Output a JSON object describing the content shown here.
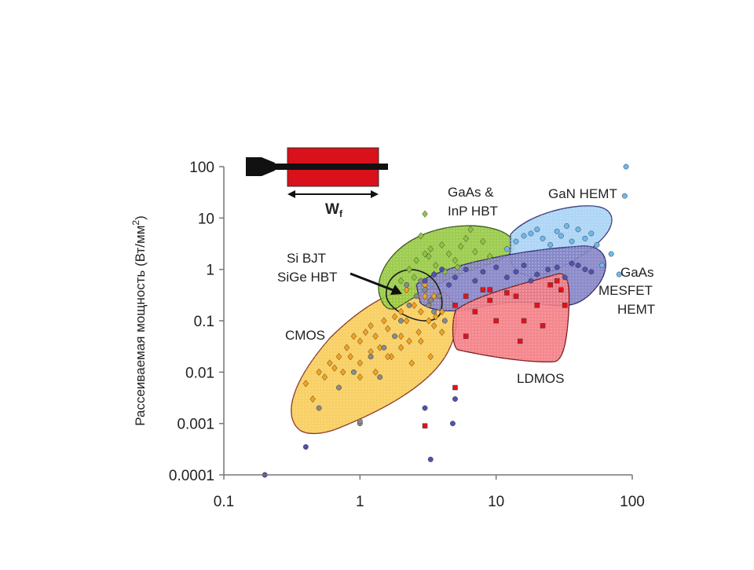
{
  "chart_data": {
    "type": "scatter",
    "title": "",
    "xlabel": "",
    "ylabel": "Рассеиваемая мощность (Вт/мм",
    "ylabel_sup": "2",
    "ylabel_close": ")",
    "xscale": "log",
    "yscale": "log",
    "xlim": [
      0.1,
      100
    ],
    "ylim": [
      0.0001,
      100
    ],
    "x_ticks": [
      "0.1",
      "1",
      "10",
      "100"
    ],
    "y_ticks": [
      "0.0001",
      "0.001",
      "0.01",
      "0.1",
      "1",
      "10",
      "100"
    ],
    "grid": false,
    "legend": "none",
    "inset_label": "W",
    "inset_label_sub": "f",
    "colors": {
      "cmos": "#f7a21b",
      "gaas_inp_hbt": "#8dc63f",
      "gan_hemt": "#7fc3f0",
      "gaas_mesfet_hemt": "#5b5fb4",
      "ldmos": "#ee3b42",
      "si_sige": "#8a8a8a",
      "inset": "#d8111b"
    },
    "regions": [
      {
        "name": "CMOS",
        "label": "CMOS",
        "color": "#f7c84a",
        "x_range": [
          0.33,
          5
        ],
        "y_range": [
          0.0006,
          1.5
        ]
      },
      {
        "name": "GaAs & InP HBT",
        "label_lines": [
          "GaAs &",
          "InP HBT"
        ],
        "color": "#93c83e",
        "x_range": [
          1.7,
          14
        ],
        "y_range": [
          0.35,
          6
        ]
      },
      {
        "name": "GaN HEMT",
        "label": "GaN HEMT",
        "color": "#a6d1f5",
        "x_range": [
          10,
          80
        ],
        "y_range": [
          0.7,
          20
        ]
      },
      {
        "name": "GaAs MESFET HEMT",
        "label_lines": [
          "GaAs",
          "MESFET",
          "HEMT"
        ],
        "color": "#8280c4",
        "x_range": [
          2.5,
          65
        ],
        "y_range": [
          0.1,
          3
        ]
      },
      {
        "name": "LDMOS",
        "label": "LDMOS",
        "color": "#f37b82",
        "x_range": [
          3.2,
          32
        ],
        "y_range": [
          0.02,
          1
        ]
      },
      {
        "name": "Si BJT SiGe HBT",
        "label_lines": [
          "Si BJT",
          "SiGe HBT"
        ],
        "color": "none",
        "x_range": [
          1.8,
          4
        ],
        "y_range": [
          0.12,
          1.1
        ]
      }
    ],
    "series": [
      {
        "name": "CMOS",
        "marker": "diamond",
        "color": "#f7a21b",
        "x": [
          0.4,
          0.5,
          0.6,
          0.7,
          0.8,
          0.9,
          1.0,
          1.1,
          1.2,
          1.3,
          1.5,
          1.6,
          1.8,
          2.0,
          2.2,
          2.5,
          2.8,
          3.0,
          3.3,
          3.6,
          4.0,
          0.45,
          0.55,
          0.65,
          0.75,
          0.85,
          1.0,
          1.2,
          1.4,
          1.7,
          2.0,
          2.3,
          2.7,
          3.2,
          3.5,
          4.0,
          1.0,
          1.3,
          1.6,
          2.0,
          2.4,
          2.8,
          3.3,
          3.0,
          3.5,
          2.2
        ],
        "y": [
          0.006,
          0.01,
          0.015,
          0.02,
          0.03,
          0.05,
          0.04,
          0.06,
          0.08,
          0.05,
          0.1,
          0.07,
          0.12,
          0.15,
          0.1,
          0.2,
          0.15,
          0.3,
          0.25,
          0.12,
          0.15,
          0.003,
          0.008,
          0.012,
          0.01,
          0.02,
          0.015,
          0.025,
          0.03,
          0.02,
          0.05,
          0.04,
          0.06,
          0.1,
          0.08,
          0.06,
          0.008,
          0.01,
          0.02,
          0.03,
          0.015,
          0.04,
          0.02,
          0.5,
          0.3,
          0.4
        ]
      },
      {
        "name": "Si BJT / SiGe HBT",
        "marker": "circle",
        "color": "#8a8a8a",
        "x": [
          0.5,
          0.7,
          0.9,
          1.0,
          1.2,
          1.5,
          1.8,
          2.0,
          2.3,
          2.6,
          3.0,
          3.2,
          3.5,
          3.8,
          4.2,
          1.0,
          1.4,
          2.2,
          2.8,
          3.3
        ],
        "y": [
          0.002,
          0.005,
          0.01,
          0.001,
          0.02,
          0.03,
          0.05,
          0.1,
          0.2,
          0.3,
          0.4,
          0.2,
          0.15,
          0.3,
          0.1,
          0.0011,
          0.008,
          0.5,
          0.6,
          0.25
        ]
      },
      {
        "name": "GaAs & InP HBT",
        "marker": "diamond",
        "color": "#8dc63f",
        "x": [
          2.0,
          2.3,
          2.6,
          3.0,
          3.3,
          3.6,
          4.0,
          4.5,
          5.0,
          5.5,
          6.0,
          7.0,
          8.0,
          9.0,
          3.0,
          3.5,
          4.2,
          5.2,
          6.5,
          2.8,
          3.2,
          2.5
        ],
        "y": [
          0.6,
          1.0,
          1.5,
          2.0,
          2.5,
          1.2,
          3.0,
          2.0,
          1.5,
          2.8,
          4.0,
          2.2,
          3.5,
          1.8,
          12,
          0.8,
          0.9,
          1.1,
          6.0,
          4.5,
          1.8,
          0.7
        ]
      },
      {
        "name": "GaN HEMT",
        "marker": "circle",
        "color": "#6db8ee",
        "x": [
          12,
          14,
          16,
          18,
          20,
          22,
          25,
          28,
          30,
          33,
          36,
          40,
          45,
          50,
          55,
          60,
          70,
          80,
          90,
          88
        ],
        "y": [
          2.5,
          3.5,
          4.5,
          5,
          6,
          4,
          3,
          5.5,
          4.5,
          7,
          3.5,
          6,
          4,
          5,
          3,
          1.2,
          2,
          0.8,
          100,
          27
        ]
      },
      {
        "name": "GaAs MESFET HEMT",
        "marker": "circle",
        "color": "#4f53aa",
        "x": [
          3,
          3.5,
          4,
          4.5,
          5,
          6,
          7,
          8,
          9,
          10,
          12,
          14,
          16,
          18,
          20,
          24,
          28,
          32,
          36,
          40,
          45,
          50,
          3,
          3.3,
          4.8,
          5,
          0.4,
          0.2
        ],
        "y": [
          0.6,
          0.8,
          1.0,
          0.5,
          0.7,
          1.0,
          0.6,
          0.9,
          0.4,
          1.1,
          0.7,
          0.9,
          1.2,
          0.6,
          0.8,
          1.0,
          1.1,
          0.7,
          1.3,
          1.2,
          1.0,
          0.9,
          0.002,
          0.0002,
          0.001,
          0.003,
          0.00035,
          0.0001
        ]
      },
      {
        "name": "LDMOS",
        "marker": "square",
        "color": "#e3111b",
        "x": [
          5,
          6,
          7,
          8,
          9,
          10,
          12,
          14,
          16,
          20,
          25,
          28,
          30,
          32,
          3,
          5,
          6,
          9,
          15,
          22
        ],
        "y": [
          0.2,
          0.3,
          0.15,
          0.4,
          0.25,
          0.1,
          0.35,
          0.3,
          0.1,
          0.2,
          0.5,
          0.6,
          0.4,
          0.2,
          0.0009,
          0.005,
          0.05,
          0.4,
          0.04,
          0.08
        ]
      }
    ]
  }
}
